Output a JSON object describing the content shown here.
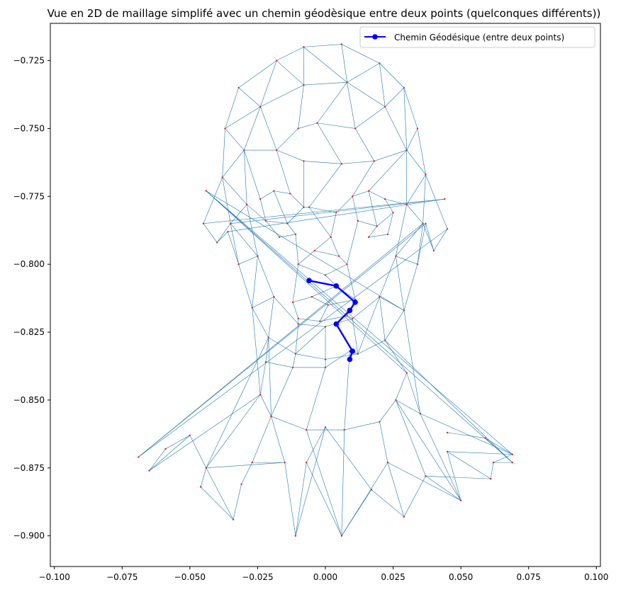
{
  "chart_data": {
    "type": "line",
    "title": "Vue en 2D de maillage simplifé avec un chemin géodèsique entre deux points (quelconques différents))",
    "xlabel": "",
    "ylabel": "",
    "xlim": [
      -0.1015,
      0.1015
    ],
    "ylim": [
      -0.9113,
      -0.7113
    ],
    "xticks": [
      -0.1,
      -0.075,
      -0.05,
      -0.025,
      0.0,
      0.025,
      0.05,
      0.075,
      0.1
    ],
    "xtick_labels": [
      "−0.100",
      "−0.075",
      "−0.050",
      "−0.025",
      "0.000",
      "0.025",
      "0.050",
      "0.075",
      "0.100"
    ],
    "yticks": [
      -0.725,
      -0.75,
      -0.775,
      -0.8,
      -0.825,
      -0.85,
      -0.875,
      -0.9
    ],
    "ytick_labels": [
      "−0.725",
      "−0.750",
      "−0.775",
      "−0.800",
      "−0.825",
      "−0.850",
      "−0.875",
      "−0.900"
    ],
    "grid": false,
    "legend_position": "top-right",
    "colors": {
      "mesh": "#1f77b4",
      "vertex": "#d62728",
      "path": "#0000ff"
    },
    "mesh": {
      "vertices": [
        [
          -0.018,
          -0.725
        ],
        [
          -0.008,
          -0.72
        ],
        [
          0.006,
          -0.719
        ],
        [
          0.02,
          -0.726
        ],
        [
          0.029,
          -0.735
        ],
        [
          0.034,
          -0.75
        ],
        [
          0.037,
          -0.767
        ],
        [
          0.036,
          -0.785
        ],
        [
          0.034,
          -0.8
        ],
        [
          0.029,
          -0.817
        ],
        [
          0.022,
          -0.828
        ],
        [
          0.012,
          -0.833
        ],
        [
          0.0,
          -0.835
        ],
        [
          -0.011,
          -0.833
        ],
        [
          -0.021,
          -0.827
        ],
        [
          -0.027,
          -0.816
        ],
        [
          -0.032,
          -0.8
        ],
        [
          -0.035,
          -0.785
        ],
        [
          -0.038,
          -0.768
        ],
        [
          -0.037,
          -0.75
        ],
        [
          -0.032,
          -0.735
        ],
        [
          -0.008,
          -0.734
        ],
        [
          0.008,
          -0.733
        ],
        [
          0.022,
          -0.742
        ],
        [
          0.03,
          -0.758
        ],
        [
          0.03,
          -0.778
        ],
        [
          0.026,
          -0.797
        ],
        [
          0.02,
          -0.812
        ],
        [
          0.01,
          -0.82
        ],
        [
          0.0,
          -0.823
        ],
        [
          -0.01,
          -0.822
        ],
        [
          -0.019,
          -0.812
        ],
        [
          -0.025,
          -0.797
        ],
        [
          -0.029,
          -0.778
        ],
        [
          -0.03,
          -0.758
        ],
        [
          -0.024,
          -0.742
        ],
        [
          -0.003,
          -0.748
        ],
        [
          0.011,
          -0.75
        ],
        [
          0.018,
          -0.762
        ],
        [
          0.006,
          -0.763
        ],
        [
          -0.008,
          -0.762
        ],
        [
          -0.018,
          -0.758
        ],
        [
          -0.01,
          -0.75
        ],
        [
          -0.024,
          -0.776
        ],
        [
          -0.019,
          -0.773
        ],
        [
          -0.013,
          -0.774
        ],
        [
          -0.008,
          -0.779
        ],
        [
          -0.014,
          -0.785
        ],
        [
          -0.022,
          -0.784
        ],
        [
          -0.017,
          -0.79
        ],
        [
          -0.011,
          -0.789
        ],
        [
          0.01,
          -0.775
        ],
        [
          0.016,
          -0.773
        ],
        [
          0.022,
          -0.776
        ],
        [
          0.025,
          -0.781
        ],
        [
          0.019,
          -0.786
        ],
        [
          0.012,
          -0.784
        ],
        [
          0.016,
          -0.79
        ],
        [
          0.023,
          -0.789
        ],
        [
          -0.006,
          -0.779
        ],
        [
          0.004,
          -0.781
        ],
        [
          0.002,
          -0.79
        ],
        [
          -0.004,
          -0.795
        ],
        [
          0.005,
          -0.797
        ],
        [
          -0.01,
          -0.8
        ],
        [
          0.008,
          -0.8
        ],
        [
          0.0,
          -0.804
        ],
        [
          -0.012,
          -0.814
        ],
        [
          -0.005,
          -0.812
        ],
        [
          0.004,
          -0.808
        ],
        [
          0.011,
          -0.813
        ],
        [
          0.008,
          -0.819
        ],
        [
          -0.002,
          -0.821
        ],
        [
          -0.01,
          -0.82
        ],
        [
          0.001,
          -0.815
        ],
        [
          0.009,
          -0.832
        ],
        [
          0.0,
          -0.838
        ],
        [
          -0.012,
          -0.838
        ],
        [
          -0.022,
          -0.836
        ],
        [
          -0.024,
          -0.848
        ],
        [
          -0.02,
          -0.856
        ],
        [
          -0.007,
          -0.861
        ],
        [
          0.007,
          -0.861
        ],
        [
          0.02,
          -0.858
        ],
        [
          0.026,
          -0.85
        ],
        [
          0.03,
          -0.84
        ],
        [
          0.035,
          -0.855
        ],
        [
          -0.044,
          -0.773
        ],
        [
          -0.045,
          -0.785
        ],
        [
          -0.04,
          -0.792
        ],
        [
          -0.036,
          -0.788
        ],
        [
          0.044,
          -0.776
        ],
        [
          0.045,
          -0.787
        ],
        [
          0.04,
          -0.795
        ],
        [
          0.037,
          -0.785
        ],
        [
          -0.069,
          -0.871
        ],
        [
          -0.065,
          -0.876
        ],
        [
          -0.059,
          -0.868
        ],
        [
          -0.05,
          -0.863
        ],
        [
          -0.044,
          -0.875
        ],
        [
          -0.046,
          -0.882
        ],
        [
          -0.034,
          -0.894
        ],
        [
          -0.031,
          -0.881
        ],
        [
          -0.027,
          -0.873
        ],
        [
          -0.015,
          -0.873
        ],
        [
          -0.011,
          -0.9
        ],
        [
          -0.007,
          -0.873
        ],
        [
          0.0,
          -0.86
        ],
        [
          0.006,
          -0.9
        ],
        [
          0.017,
          -0.883
        ],
        [
          0.023,
          -0.873
        ],
        [
          0.029,
          -0.893
        ],
        [
          0.037,
          -0.878
        ],
        [
          0.05,
          -0.887
        ],
        [
          0.045,
          -0.869
        ],
        [
          0.061,
          -0.879
        ],
        [
          0.062,
          -0.873
        ],
        [
          0.069,
          -0.87
        ],
        [
          0.069,
          -0.873
        ],
        [
          0.059,
          -0.864
        ],
        [
          0.045,
          -0.862
        ]
      ],
      "edges": [
        [
          0,
          1
        ],
        [
          1,
          2
        ],
        [
          2,
          3
        ],
        [
          3,
          4
        ],
        [
          4,
          5
        ],
        [
          5,
          6
        ],
        [
          6,
          7
        ],
        [
          7,
          8
        ],
        [
          8,
          9
        ],
        [
          9,
          10
        ],
        [
          10,
          11
        ],
        [
          11,
          12
        ],
        [
          12,
          13
        ],
        [
          13,
          14
        ],
        [
          14,
          15
        ],
        [
          15,
          16
        ],
        [
          16,
          17
        ],
        [
          17,
          18
        ],
        [
          18,
          19
        ],
        [
          19,
          20
        ],
        [
          20,
          0
        ],
        [
          21,
          22
        ],
        [
          22,
          23
        ],
        [
          23,
          24
        ],
        [
          24,
          25
        ],
        [
          25,
          26
        ],
        [
          26,
          27
        ],
        [
          27,
          28
        ],
        [
          28,
          29
        ],
        [
          29,
          30
        ],
        [
          30,
          31
        ],
        [
          31,
          32
        ],
        [
          32,
          33
        ],
        [
          33,
          34
        ],
        [
          34,
          35
        ],
        [
          35,
          21
        ],
        [
          0,
          21
        ],
        [
          1,
          21
        ],
        [
          2,
          22
        ],
        [
          3,
          22
        ],
        [
          3,
          23
        ],
        [
          4,
          23
        ],
        [
          5,
          24
        ],
        [
          6,
          24
        ],
        [
          6,
          25
        ],
        [
          7,
          25
        ],
        [
          8,
          26
        ],
        [
          9,
          27
        ],
        [
          10,
          27
        ],
        [
          11,
          28
        ],
        [
          12,
          29
        ],
        [
          13,
          30
        ],
        [
          14,
          31
        ],
        [
          15,
          31
        ],
        [
          16,
          32
        ],
        [
          17,
          33
        ],
        [
          18,
          33
        ],
        [
          19,
          34
        ],
        [
          20,
          35
        ],
        [
          0,
          35
        ],
        [
          1,
          22
        ],
        [
          4,
          24
        ],
        [
          7,
          26
        ],
        [
          9,
          26
        ],
        [
          11,
          27
        ],
        [
          13,
          29
        ],
        [
          15,
          32
        ],
        [
          17,
          32
        ],
        [
          19,
          35
        ],
        [
          18,
          34
        ],
        [
          21,
          42
        ],
        [
          22,
          36
        ],
        [
          22,
          37
        ],
        [
          23,
          37
        ],
        [
          24,
          38
        ],
        [
          36,
          37
        ],
        [
          37,
          38
        ],
        [
          38,
          39
        ],
        [
          39,
          40
        ],
        [
          40,
          41
        ],
        [
          41,
          42
        ],
        [
          42,
          36
        ],
        [
          36,
          39
        ],
        [
          35,
          41
        ],
        [
          34,
          41
        ],
        [
          24,
          52
        ],
        [
          43,
          44
        ],
        [
          44,
          45
        ],
        [
          45,
          46
        ],
        [
          46,
          47
        ],
        [
          47,
          48
        ],
        [
          48,
          43
        ],
        [
          44,
          47
        ],
        [
          48,
          49
        ],
        [
          49,
          50
        ],
        [
          50,
          47
        ],
        [
          45,
          41
        ],
        [
          43,
          34
        ],
        [
          48,
          33
        ],
        [
          51,
          52
        ],
        [
          52,
          53
        ],
        [
          53,
          54
        ],
        [
          54,
          55
        ],
        [
          55,
          56
        ],
        [
          56,
          51
        ],
        [
          52,
          55
        ],
        [
          55,
          57
        ],
        [
          57,
          58
        ],
        [
          58,
          54
        ],
        [
          53,
          25
        ],
        [
          51,
          38
        ],
        [
          46,
          59
        ],
        [
          59,
          60
        ],
        [
          60,
          51
        ],
        [
          59,
          61
        ],
        [
          60,
          61
        ],
        [
          61,
          62
        ],
        [
          62,
          63
        ],
        [
          63,
          61
        ],
        [
          62,
          64
        ],
        [
          64,
          50
        ],
        [
          63,
          65
        ],
        [
          65,
          56
        ],
        [
          64,
          66
        ],
        [
          66,
          65
        ],
        [
          39,
          59
        ],
        [
          40,
          46
        ],
        [
          64,
          67
        ],
        [
          67,
          68
        ],
        [
          68,
          69
        ],
        [
          69,
          70
        ],
        [
          70,
          71
        ],
        [
          71,
          72
        ],
        [
          72,
          73
        ],
        [
          73,
          67
        ],
        [
          68,
          74
        ],
        [
          74,
          70
        ],
        [
          74,
          72
        ],
        [
          66,
          69
        ],
        [
          71,
          28
        ],
        [
          73,
          30
        ],
        [
          65,
          70
        ],
        [
          12,
          76
        ],
        [
          76,
          75
        ],
        [
          75,
          11
        ],
        [
          76,
          77
        ],
        [
          77,
          13
        ],
        [
          77,
          78
        ],
        [
          78,
          14
        ],
        [
          78,
          79
        ],
        [
          79,
          80
        ],
        [
          80,
          81
        ],
        [
          81,
          82
        ],
        [
          82,
          83
        ],
        [
          83,
          84
        ],
        [
          84,
          85
        ],
        [
          85,
          10
        ],
        [
          85,
          86
        ],
        [
          86,
          84
        ],
        [
          75,
          82
        ],
        [
          76,
          81
        ],
        [
          77,
          80
        ],
        [
          88,
          89
        ],
        [
          89,
          90
        ],
        [
          90,
          91
        ],
        [
          91,
          88
        ],
        [
          88,
          18
        ],
        [
          89,
          17
        ],
        [
          90,
          16
        ],
        [
          91,
          17
        ],
        [
          92,
          93
        ],
        [
          93,
          94
        ],
        [
          94,
          95
        ],
        [
          95,
          92
        ],
        [
          92,
          6
        ],
        [
          93,
          7
        ],
        [
          94,
          8
        ],
        [
          95,
          7
        ],
        [
          96,
          97
        ],
        [
          96,
          98
        ],
        [
          97,
          98
        ],
        [
          98,
          99
        ],
        [
          99,
          100
        ],
        [
          100,
          101
        ],
        [
          101,
          99
        ],
        [
          101,
          102
        ],
        [
          102,
          103
        ],
        [
          103,
          104
        ],
        [
          104,
          99
        ],
        [
          104,
          105
        ],
        [
          105,
          106
        ],
        [
          106,
          107
        ],
        [
          107,
          105
        ],
        [
          106,
          108
        ],
        [
          108,
          109
        ],
        [
          109,
          107
        ],
        [
          108,
          110
        ],
        [
          110,
          111
        ],
        [
          111,
          109
        ],
        [
          111,
          112
        ],
        [
          112,
          113
        ],
        [
          113,
          110
        ],
        [
          113,
          114
        ],
        [
          114,
          115
        ],
        [
          115,
          112
        ],
        [
          115,
          116
        ],
        [
          116,
          117
        ],
        [
          117,
          114
        ],
        [
          116,
          118
        ],
        [
          118,
          119
        ],
        [
          119,
          117
        ],
        [
          119,
          120
        ],
        [
          120,
          121
        ],
        [
          121,
          118
        ],
        [
          121,
          122
        ],
        [
          122,
          120
        ],
        [
          122,
          123
        ],
        [
          123,
          121
        ],
        [
          123,
          117
        ],
        [
          99,
          79
        ],
        [
          99,
          14
        ],
        [
          96,
          79
        ],
        [
          104,
          80
        ],
        [
          103,
          80
        ],
        [
          108,
          81
        ],
        [
          108,
          82
        ],
        [
          110,
          83
        ],
        [
          112,
          84
        ],
        [
          113,
          84
        ],
        [
          113,
          86
        ],
        [
          117,
          86
        ],
        [
          117,
          87
        ],
        [
          118,
          87
        ],
        [
          118,
          10
        ],
        [
          87,
          85
        ],
        [
          15,
          79
        ],
        [
          14,
          80
        ],
        [
          86,
          9
        ],
        [
          87,
          9
        ]
      ]
    },
    "series": [
      {
        "name": "Chemin Géodésique (entre deux points)",
        "x": [
          -0.006,
          0.004,
          0.011,
          0.009,
          0.004,
          0.01,
          0.009
        ],
        "y": [
          -0.806,
          -0.808,
          -0.814,
          -0.817,
          -0.822,
          -0.832,
          -0.835
        ]
      }
    ]
  }
}
